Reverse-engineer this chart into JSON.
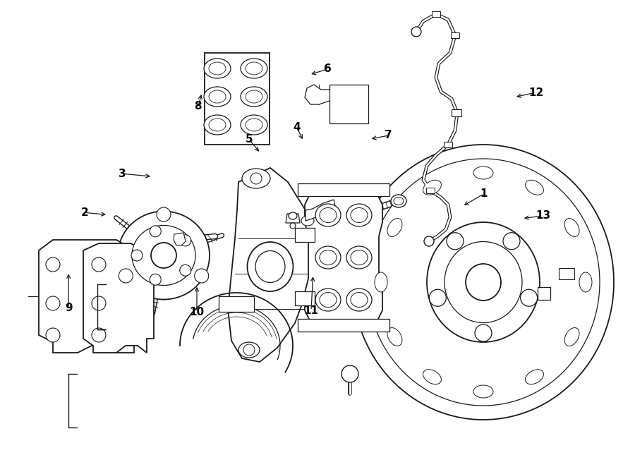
{
  "background_color": "#ffffff",
  "line_color": "#1a1a1a",
  "figsize": [
    9.0,
    6.62
  ],
  "dpi": 100,
  "label_positions": {
    "1": [
      0.762,
      0.415,
      0.728,
      0.442
    ],
    "2": [
      0.133,
      0.455,
      0.17,
      0.46
    ],
    "3": [
      0.193,
      0.372,
      0.24,
      0.378
    ],
    "4": [
      0.467,
      0.272,
      0.478,
      0.302
    ],
    "5": [
      0.392,
      0.298,
      0.41,
      0.328
    ],
    "6": [
      0.516,
      0.148,
      0.487,
      0.16
    ],
    "7": [
      0.612,
      0.29,
      0.582,
      0.298
    ],
    "8": [
      0.312,
      0.228,
      0.318,
      0.198
    ],
    "9": [
      0.108,
      0.66,
      0.108,
      0.582
    ],
    "10": [
      0.31,
      0.668,
      0.31,
      0.61
    ],
    "11": [
      0.49,
      0.665,
      0.493,
      0.588
    ],
    "12": [
      0.844,
      0.198,
      0.81,
      0.208
    ],
    "13": [
      0.855,
      0.462,
      0.822,
      0.468
    ]
  }
}
